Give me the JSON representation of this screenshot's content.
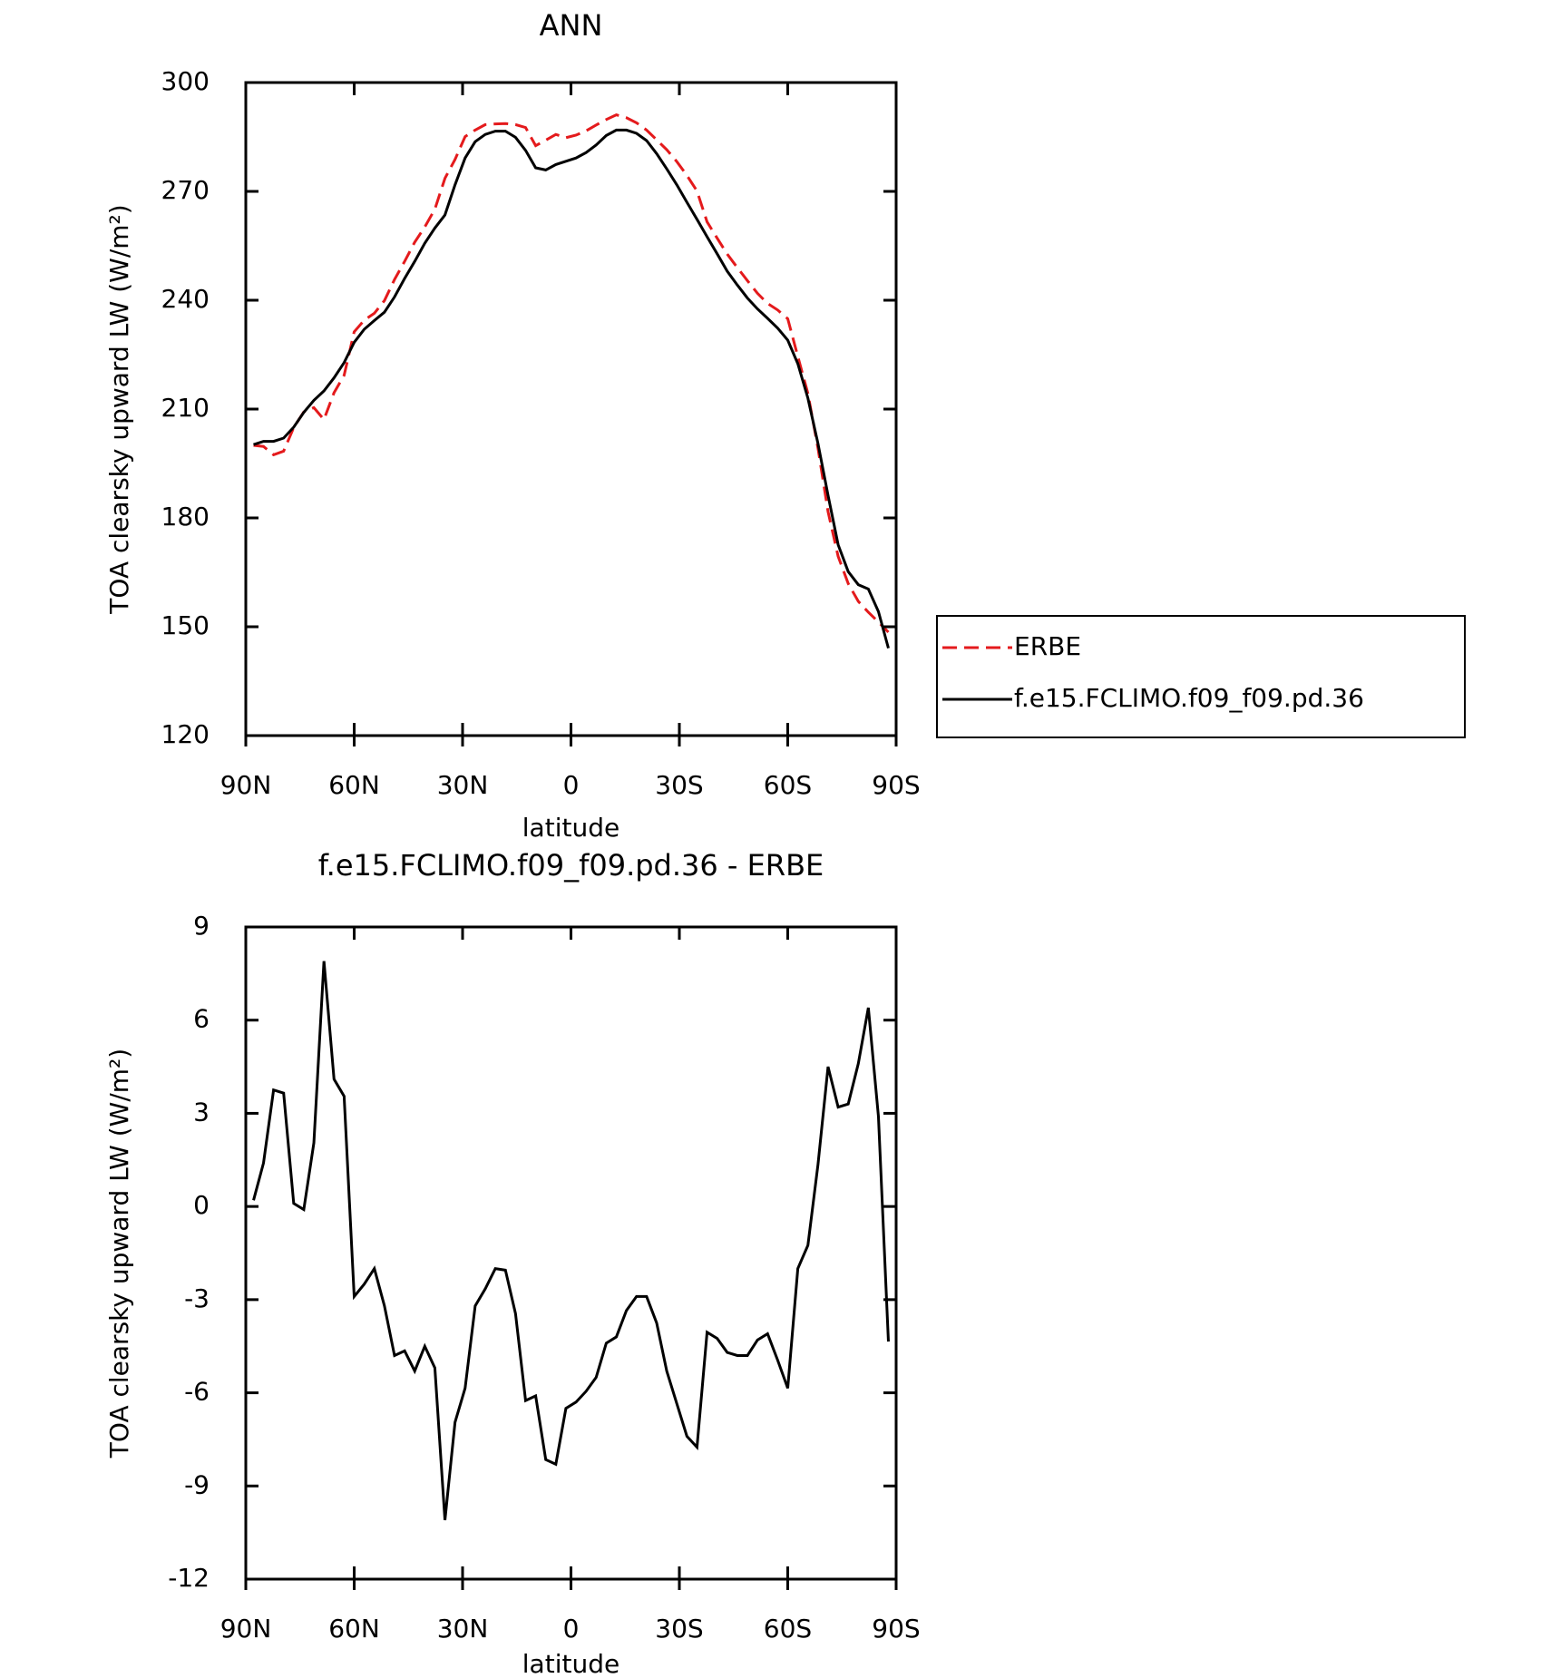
{
  "chart_data": [
    {
      "type": "line",
      "title": "ANN",
      "xlabel": "latitude",
      "ylabel": "TOA clearsky upward LW (W/m²)",
      "x": [
        87.86,
        85.1,
        82.31,
        79.53,
        76.74,
        73.95,
        71.16,
        68.37,
        65.58,
        62.79,
        60.0,
        57.21,
        54.42,
        51.63,
        48.84,
        46.04,
        43.25,
        40.46,
        37.67,
        34.88,
        32.09,
        29.3,
        26.51,
        23.72,
        20.93,
        18.14,
        15.35,
        12.56,
        9.77,
        6.98,
        4.19,
        1.4,
        -1.4,
        -4.19,
        -6.98,
        -9.77,
        -12.56,
        -15.35,
        -18.14,
        -20.93,
        -23.72,
        -26.51,
        -29.3,
        -32.09,
        -34.88,
        -37.67,
        -40.46,
        -43.25,
        -46.04,
        -48.84,
        -51.63,
        -54.42,
        -57.21,
        -60.0,
        -62.79,
        -65.58,
        -68.37,
        -71.16,
        -73.95,
        -76.74,
        -79.53,
        -82.31,
        -85.1,
        -87.86
      ],
      "series": [
        {
          "name": "ERBE",
          "color": "#e41a1c",
          "linestyle": "dashed",
          "values": [
            200.0,
            199.7,
            197.4,
            198.4,
            204.9,
            209.2,
            210.4,
            207.1,
            214.5,
            219.3,
            231.3,
            234.5,
            236.4,
            239.9,
            245.7,
            250.7,
            256.0,
            260.2,
            265.1,
            273.6,
            278.8,
            285.1,
            286.9,
            288.4,
            288.6,
            288.7,
            288.4,
            287.6,
            282.6,
            284.1,
            285.7,
            284.8,
            285.5,
            286.7,
            288.3,
            289.8,
            291.1,
            290.3,
            288.9,
            286.9,
            284.2,
            281.5,
            278.2,
            274.4,
            270.1,
            261.6,
            257.1,
            252.7,
            249.0,
            245.4,
            241.9,
            239.1,
            237.3,
            234.9,
            224.5,
            214.3,
            199.2,
            181.7,
            169.4,
            161.9,
            157.0,
            154.0,
            151.3,
            148.5
          ]
        },
        {
          "name": "f.e15.FCLIMO.f09_f09.pd.36",
          "color": "#000000",
          "linestyle": "solid",
          "values": [
            200.2,
            201.1,
            201.1,
            202.0,
            205.0,
            209.1,
            212.4,
            215.0,
            218.6,
            222.8,
            228.4,
            232.0,
            234.4,
            236.7,
            240.9,
            246.0,
            250.7,
            255.7,
            259.9,
            263.5,
            271.8,
            279.2,
            283.7,
            285.7,
            286.6,
            286.6,
            284.9,
            281.3,
            276.5,
            275.9,
            277.4,
            278.3,
            279.2,
            280.7,
            282.8,
            285.4,
            286.9,
            286.9,
            286.0,
            284.0,
            280.4,
            276.2,
            271.8,
            267.0,
            262.3,
            257.5,
            252.8,
            248.0,
            244.2,
            240.6,
            237.6,
            235.0,
            232.3,
            229.0,
            222.5,
            213.0,
            200.5,
            186.2,
            172.6,
            165.2,
            161.6,
            160.4,
            154.2,
            144.1
          ]
        }
      ],
      "xlim": [
        90,
        -90
      ],
      "xticks": [
        {
          "value": 90,
          "label": "90N"
        },
        {
          "value": 60,
          "label": "60N"
        },
        {
          "value": 30,
          "label": "30N"
        },
        0,
        {
          "value": -30,
          "label": "30S"
        },
        {
          "value": -60,
          "label": "60S"
        },
        {
          "value": -90,
          "label": "90S"
        }
      ],
      "ylim": [
        120,
        300
      ],
      "yticks": [
        120,
        150,
        180,
        210,
        240,
        270,
        300
      ],
      "legend": "right"
    },
    {
      "type": "line",
      "title": "f.e15.FCLIMO.f09_f09.pd.36 - ERBE",
      "xlabel": "latitude",
      "ylabel": "TOA clearsky upward LW (W/m²)",
      "x": [
        87.86,
        85.1,
        82.31,
        79.53,
        76.74,
        73.95,
        71.16,
        68.37,
        65.58,
        62.79,
        60.0,
        57.21,
        54.42,
        51.63,
        48.84,
        46.04,
        43.25,
        40.46,
        37.67,
        34.88,
        32.09,
        29.3,
        26.51,
        23.72,
        20.93,
        18.14,
        15.35,
        12.56,
        9.77,
        6.98,
        4.19,
        1.4,
        -1.4,
        -4.19,
        -6.98,
        -9.77,
        -12.56,
        -15.35,
        -18.14,
        -20.93,
        -23.72,
        -26.51,
        -29.3,
        -32.09,
        -34.88,
        -37.67,
        -40.46,
        -43.25,
        -46.04,
        -48.84,
        -51.63,
        -54.42,
        -57.21,
        -60.0,
        -62.79,
        -65.58,
        -68.37,
        -71.16,
        -73.95,
        -76.74,
        -79.53,
        -82.31,
        -85.1,
        -87.86
      ],
      "series": [
        {
          "color": "#000000",
          "linestyle": "solid",
          "values": [
            0.2,
            1.4,
            3.75,
            3.65,
            0.1,
            -0.1,
            2.05,
            7.9,
            4.1,
            3.55,
            -2.9,
            -2.5,
            -2.0,
            -3.2,
            -4.8,
            -4.65,
            -5.3,
            -4.5,
            -5.2,
            -10.1,
            -6.95,
            -5.85,
            -3.2,
            -2.65,
            -2.0,
            -2.05,
            -3.45,
            -6.25,
            -6.1,
            -8.15,
            -8.3,
            -6.5,
            -6.3,
            -5.95,
            -5.5,
            -4.4,
            -4.2,
            -3.35,
            -2.9,
            -2.9,
            -3.75,
            -5.3,
            -6.35,
            -7.4,
            -7.75,
            -4.05,
            -4.25,
            -4.7,
            -4.8,
            -4.8,
            -4.3,
            -4.1,
            -4.95,
            -5.85,
            -2.0,
            -1.25,
            1.35,
            4.5,
            3.2,
            3.3,
            4.6,
            6.4,
            2.9,
            -4.35
          ]
        }
      ],
      "xlim": [
        90,
        -90
      ],
      "xticks": [
        {
          "value": 90,
          "label": "90N"
        },
        {
          "value": 60,
          "label": "60N"
        },
        {
          "value": 30,
          "label": "30N"
        },
        0,
        {
          "value": -30,
          "label": "30S"
        },
        {
          "value": -60,
          "label": "60S"
        },
        {
          "value": -90,
          "label": "90S"
        }
      ],
      "ylim": [
        -12,
        9
      ],
      "yticks": [
        -12,
        -9,
        -6,
        -3,
        0,
        3,
        6,
        9
      ]
    }
  ]
}
